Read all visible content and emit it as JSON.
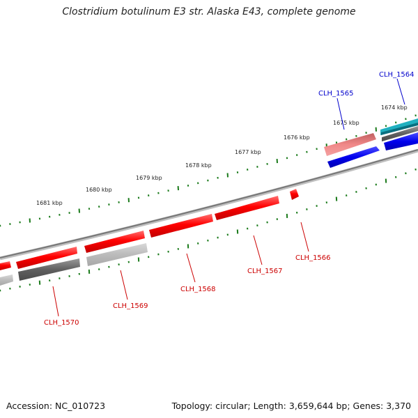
{
  "title": "Clostridium botulinum E3 str. Alaska E43, complete genome",
  "footer": {
    "accession": "Accession: NC_010723",
    "info": "Topology: circular; Length: 3,659,644 bp; Genes: 3,370"
  },
  "colors": {
    "forward_gene": "#ff0000",
    "forward_gene_dark": "#d40000",
    "forward_gene_light": "#f08080",
    "reverse_gene": "#0000ee",
    "reverse_gene_dark": "#0000b8",
    "teal_feature": "#20b0c0",
    "backbone": "#888888",
    "tick": "#1a7a1a",
    "label_forward": "#cc0000",
    "label_reverse": "#0000cc"
  },
  "scale_labels": [
    "1681 kbp",
    "1680 kbp",
    "1679 kbp",
    "1678 kbp",
    "1677 kbp",
    "1676 kbp",
    "1675 kbp",
    "1674 kbp"
  ],
  "genes": [
    {
      "id": "CLH_1570",
      "strand": "forward"
    },
    {
      "id": "CLH_1569",
      "strand": "forward"
    },
    {
      "id": "CLH_1568",
      "strand": "forward"
    },
    {
      "id": "CLH_1567",
      "strand": "forward"
    },
    {
      "id": "CLH_1566",
      "strand": "forward"
    },
    {
      "id": "CLH_1565",
      "strand": "reverse"
    },
    {
      "id": "CLH_1564",
      "strand": "reverse"
    }
  ]
}
